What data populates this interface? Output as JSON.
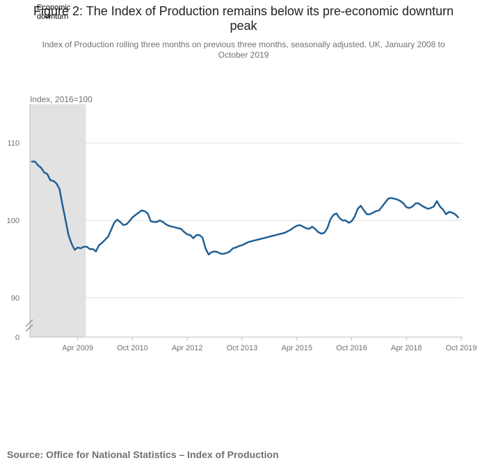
{
  "chart_data": {
    "type": "line",
    "title": "Figure 2: The Index of Production remains below its pre-economic downturn peak",
    "subtitle": "Index of Production rolling three months on previous three months, seasonally adjusted, UK, January 2008 to October 2019",
    "ylabel": "Index, 2016=100",
    "xlabel": "",
    "x_ticks": [
      "Apr 2009",
      "Oct 2010",
      "Apr 2012",
      "Oct 2013",
      "Apr 2015",
      "Oct 2016",
      "Apr 2018",
      "Oct 2019"
    ],
    "y_ticks": [
      "0",
      "90",
      "100",
      "110"
    ],
    "ylim": [
      87,
      115
    ],
    "axis_break": true,
    "grid": true,
    "shaded_region": {
      "label": "Economic downturn",
      "start": "2008-01",
      "end": "2009-06"
    },
    "start_month": "2008-01",
    "end_month": "2019-10",
    "color": "#206095",
    "series": [
      {
        "name": "",
        "values": [
          107.6,
          107.6,
          107.1,
          106.8,
          106.2,
          106.0,
          105.2,
          105.1,
          104.8,
          104.1,
          102.0,
          100.1,
          98.1,
          97.0,
          96.2,
          96.5,
          96.4,
          96.6,
          96.6,
          96.3,
          96.3,
          96.0,
          96.8,
          97.1,
          97.5,
          97.9,
          98.8,
          99.7,
          100.1,
          99.8,
          99.4,
          99.5,
          99.9,
          100.4,
          100.7,
          101.0,
          101.3,
          101.2,
          100.9,
          99.9,
          99.8,
          99.8,
          100.0,
          99.8,
          99.5,
          99.3,
          99.2,
          99.1,
          99.0,
          98.9,
          98.5,
          98.2,
          98.1,
          97.7,
          98.1,
          98.1,
          97.8,
          96.4,
          95.6,
          95.9,
          96.0,
          95.9,
          95.7,
          95.7,
          95.8,
          96.0,
          96.4,
          96.5,
          96.7,
          96.8,
          97.0,
          97.2,
          97.3,
          97.4,
          97.5,
          97.6,
          97.7,
          97.8,
          97.9,
          98.0,
          98.1,
          98.2,
          98.3,
          98.4,
          98.6,
          98.8,
          99.1,
          99.3,
          99.4,
          99.2,
          99.0,
          98.9,
          99.2,
          98.9,
          98.5,
          98.3,
          98.4,
          99.0,
          100.1,
          100.7,
          100.9,
          100.3,
          100.0,
          100.0,
          99.7,
          99.9,
          100.5,
          101.5,
          101.9,
          101.3,
          100.8,
          100.8,
          101.0,
          101.2,
          101.3,
          101.8,
          102.3,
          102.8,
          102.9,
          102.8,
          102.7,
          102.5,
          102.2,
          101.7,
          101.6,
          101.8,
          102.2,
          102.2,
          101.9,
          101.7,
          101.5,
          101.6,
          101.8,
          102.5,
          101.8,
          101.4,
          100.8,
          101.1,
          101.0,
          100.8,
          100.4
        ]
      }
    ]
  },
  "source": "Source: Office for National Statistics – Index of Production"
}
